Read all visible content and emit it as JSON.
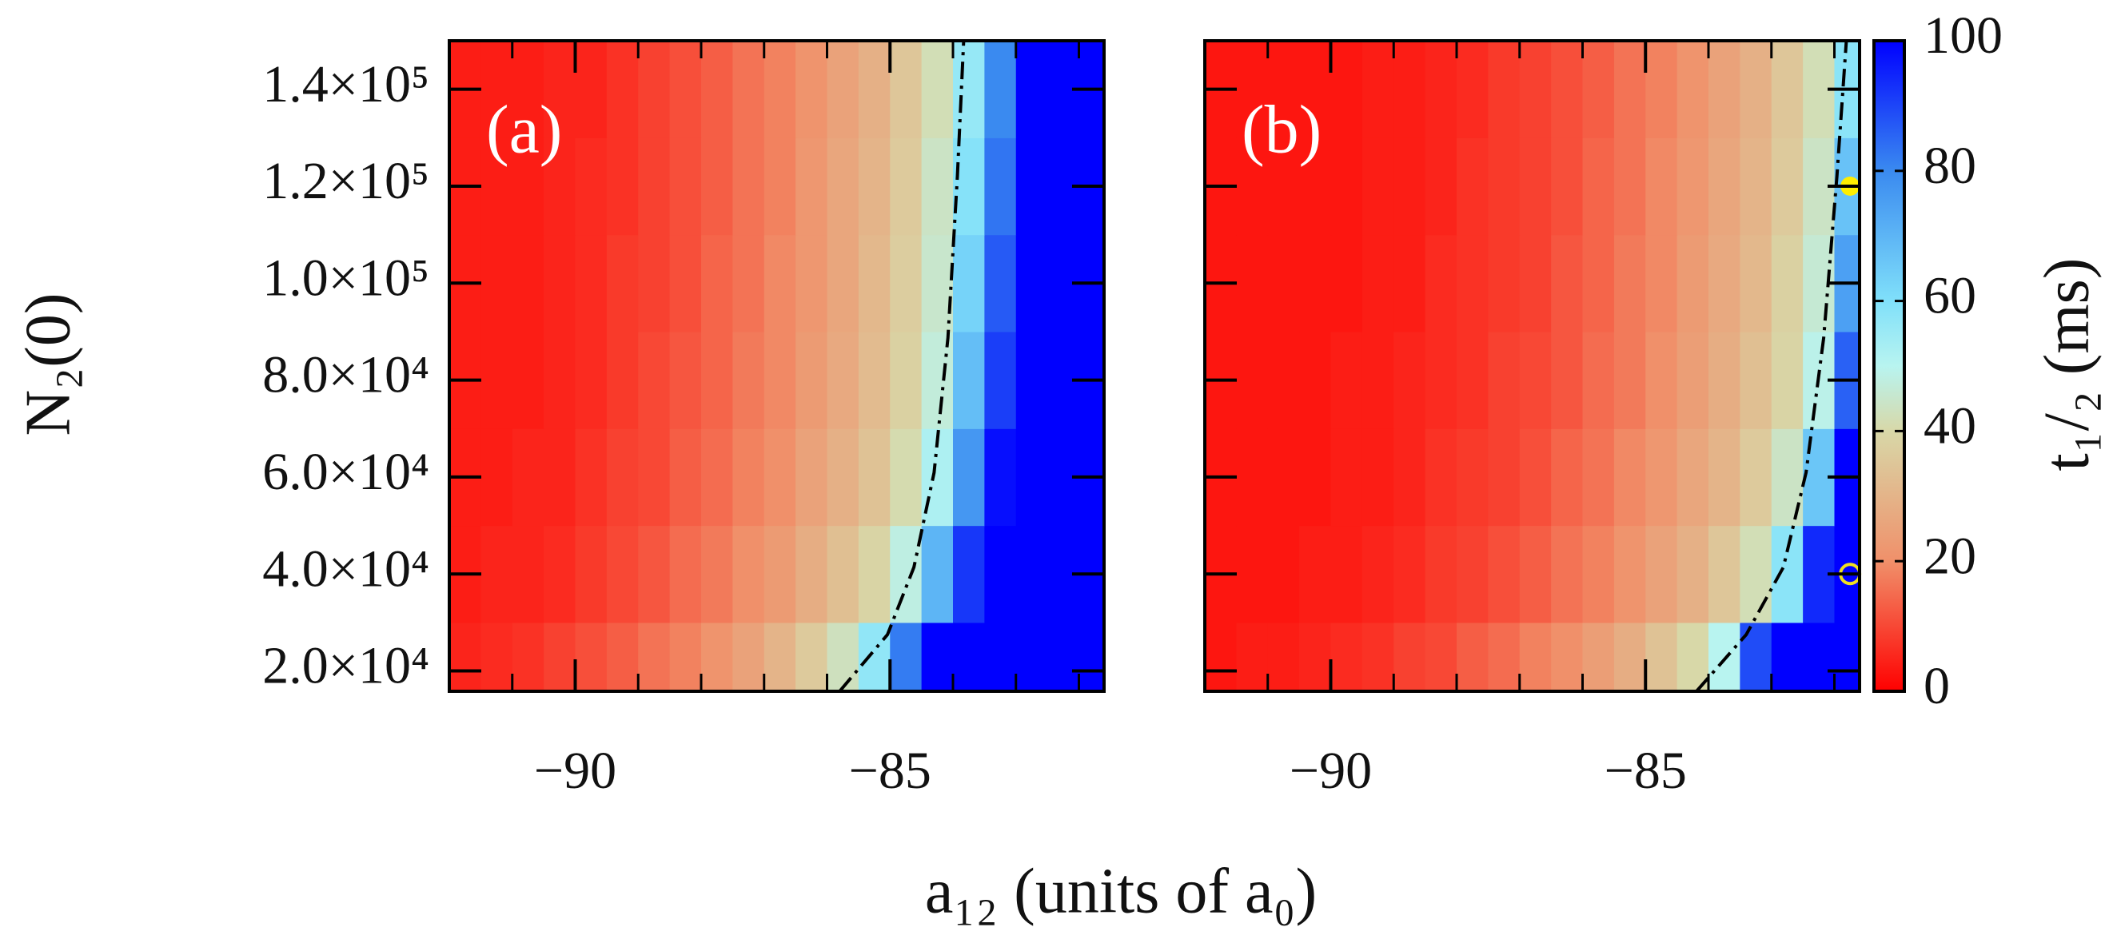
{
  "chart_data": {
    "type": "heatmap",
    "xlabel": "a₁₂ (units of a₀)",
    "ylabel": "N₂(0)",
    "clabel": "t₁/₂ (ms)",
    "xlim": [
      -92,
      -81.6
    ],
    "ylim": [
      15800,
      150000
    ],
    "xticks": [
      {
        "value": -90,
        "label": "−90"
      },
      {
        "value": -85,
        "label": "−85"
      }
    ],
    "xminorticks": [
      -91,
      -89,
      -88,
      -87,
      -86,
      -84,
      -83,
      -82
    ],
    "yticks": [
      {
        "value": 20000,
        "label": "2.0×10⁴"
      },
      {
        "value": 40000,
        "label": "4.0×10⁴"
      },
      {
        "value": 60000,
        "label": "6.0×10⁴"
      },
      {
        "value": 80000,
        "label": "8.0×10⁴"
      },
      {
        "value": 100000,
        "label": "1.0×10⁵"
      },
      {
        "value": 120000,
        "label": "1.2×10⁵"
      },
      {
        "value": 140000,
        "label": "1.4×10⁵"
      }
    ],
    "clim": [
      0,
      100
    ],
    "cticks": [
      0,
      20,
      40,
      60,
      80,
      100
    ],
    "colormap": [
      {
        "value": 0,
        "color": "#ff0000"
      },
      {
        "value": 20,
        "color": "#f0906a"
      },
      {
        "value": 40,
        "color": "#d8d8a8"
      },
      {
        "value": 50,
        "color": "#b8f4f0"
      },
      {
        "value": 60,
        "color": "#80e0fa"
      },
      {
        "value": 80,
        "color": "#3a8af0"
      },
      {
        "value": 100,
        "color": "#0000ff"
      }
    ],
    "x": [
      -91.75,
      -91.25,
      -90.75,
      -90.25,
      -89.75,
      -89.25,
      -88.75,
      -88.25,
      -87.75,
      -87.25,
      -86.75,
      -86.25,
      -85.75,
      -85.25,
      -84.75,
      -84.25,
      -83.75,
      -83.25,
      -82.75,
      -82.25,
      -81.75
    ],
    "y": [
      20000,
      40000,
      60000,
      80000,
      100000,
      120000,
      140000
    ],
    "panels": [
      {
        "label": "(a)",
        "z": [
          [
            5,
            6,
            7,
            9,
            11,
            13,
            16,
            18,
            21,
            25,
            30,
            36,
            43,
            57,
            82,
            100,
            100,
            100,
            100,
            100,
            100
          ],
          [
            4,
            5,
            5,
            6,
            8,
            10,
            12,
            15,
            17,
            20,
            23,
            28,
            33,
            39,
            48,
            70,
            92,
            100,
            100,
            100,
            100
          ],
          [
            4,
            4,
            5,
            5,
            7,
            9,
            10,
            13,
            15,
            18,
            20,
            25,
            29,
            34,
            41,
            52,
            77,
            98,
            100,
            100,
            100
          ],
          [
            4,
            4,
            4,
            5,
            6,
            8,
            10,
            12,
            14,
            17,
            19,
            23,
            27,
            32,
            38,
            47,
            68,
            91,
            100,
            100,
            100
          ],
          [
            4,
            4,
            4,
            5,
            6,
            8,
            9,
            11,
            14,
            16,
            19,
            22,
            26,
            31,
            37,
            45,
            63,
            87,
            100,
            100,
            100
          ],
          [
            4,
            4,
            4,
            5,
            6,
            7,
            9,
            11,
            13,
            16,
            18,
            22,
            26,
            30,
            36,
            44,
            59,
            83,
            100,
            100,
            100
          ],
          [
            4,
            4,
            4,
            5,
            5,
            7,
            9,
            11,
            13,
            16,
            18,
            21,
            25,
            29,
            35,
            42,
            56,
            80,
            100,
            100,
            100
          ]
        ],
        "contour_x": [
          -85.8,
          -85.04,
          -84.62,
          -84.3,
          -84.08,
          -83.93,
          -83.83
        ],
        "contour_y": [
          15800,
          27500,
          41400,
          60900,
          88700,
          122000,
          150000
        ],
        "markers": []
      },
      {
        "label": "(b)",
        "z": [
          [
            3,
            4,
            4,
            5,
            6,
            7,
            9,
            10,
            13,
            15,
            18,
            20,
            24,
            28,
            34,
            40,
            50,
            89,
            100,
            100,
            100
          ],
          [
            3,
            3,
            3,
            4,
            4,
            5,
            6,
            8,
            9,
            11,
            13,
            16,
            18,
            21,
            25,
            29,
            35,
            42,
            58,
            94,
            100
          ],
          [
            3,
            3,
            3,
            3,
            4,
            4,
            5,
            7,
            8,
            9,
            11,
            14,
            16,
            19,
            22,
            26,
            30,
            36,
            44,
            66,
            100
          ],
          [
            3,
            3,
            3,
            3,
            4,
            4,
            5,
            6,
            7,
            9,
            10,
            12,
            15,
            17,
            20,
            24,
            28,
            33,
            39,
            49,
            86
          ],
          [
            3,
            3,
            3,
            3,
            3,
            4,
            4,
            6,
            7,
            8,
            9,
            12,
            14,
            17,
            19,
            23,
            27,
            31,
            38,
            46,
            75
          ],
          [
            3,
            3,
            3,
            3,
            3,
            4,
            4,
            5,
            7,
            8,
            9,
            11,
            14,
            16,
            19,
            22,
            26,
            30,
            36,
            44,
            67
          ],
          [
            3,
            3,
            3,
            3,
            3,
            4,
            4,
            5,
            6,
            8,
            9,
            11,
            13,
            16,
            18,
            21,
            25,
            29,
            35,
            42,
            58
          ]
        ],
        "contour_x": [
          -84.19,
          -83.4,
          -82.81,
          -82.45,
          -82.17,
          -81.96,
          -81.81
        ],
        "contour_y": [
          15800,
          27500,
          41400,
          60900,
          88700,
          122000,
          150000
        ],
        "markers": [
          {
            "x": -81.75,
            "y": 120000,
            "filled": true,
            "color": "#ffee00"
          },
          {
            "x": -81.75,
            "y": 40000,
            "filled": false,
            "color": "#f0e020"
          }
        ]
      }
    ]
  }
}
